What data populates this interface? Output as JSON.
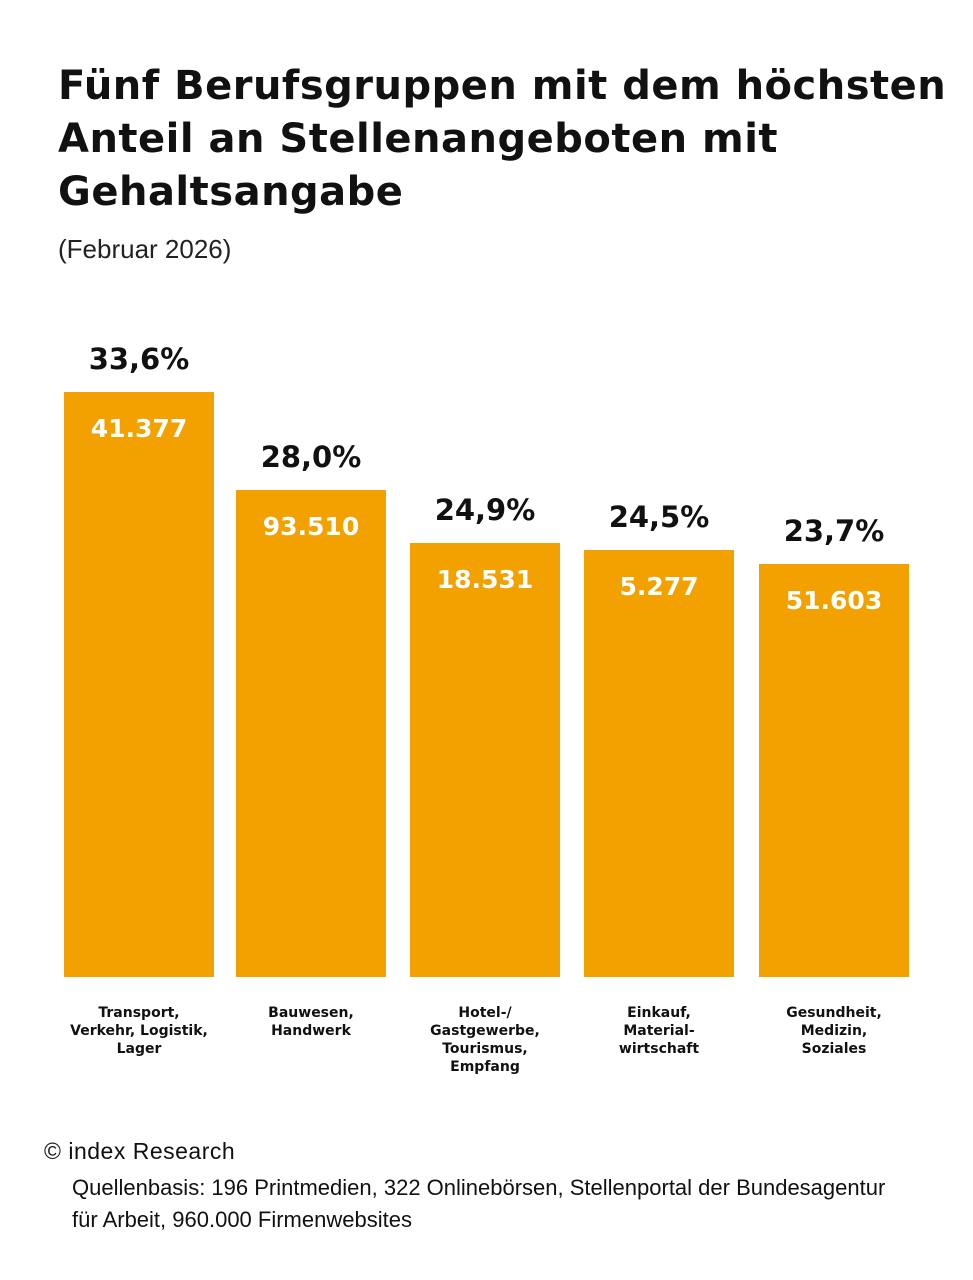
{
  "chart_data": {
    "type": "bar",
    "title": "Fünf Berufsgruppen mit dem höchsten Anteil an Stellenangeboten mit Gehaltsangabe",
    "subtitle": "(Februar 2026)",
    "categories": [
      "Transport,\nVerkehr, Logistik,\nLager",
      "Bauwesen,\nHandwerk",
      "Hotel-/\nGastgewerbe,\nTourismus,\nEmpfang",
      "Einkauf,\nMaterial-\nwirtschaft",
      "Gesundheit,\nMedizin,\nSoziales"
    ],
    "values": [
      33.6,
      28.0,
      24.9,
      24.5,
      23.7
    ],
    "value_labels": [
      "33,6%",
      "28,0%",
      "24,9%",
      "24,5%",
      "23,7%"
    ],
    "count_labels": [
      "41.377",
      "93.510",
      "18.531",
      "5.277",
      "51.603"
    ],
    "bar_color": "#F2A100",
    "grid": false,
    "legend": "none"
  },
  "footer": {
    "copyright": "© index Research",
    "source": "Quellenbasis: 196 Printmedien, 322 Onlinebörsen, Stellenportal der Bundesagentur für Arbeit, 960.000 Firmenwebsites"
  }
}
